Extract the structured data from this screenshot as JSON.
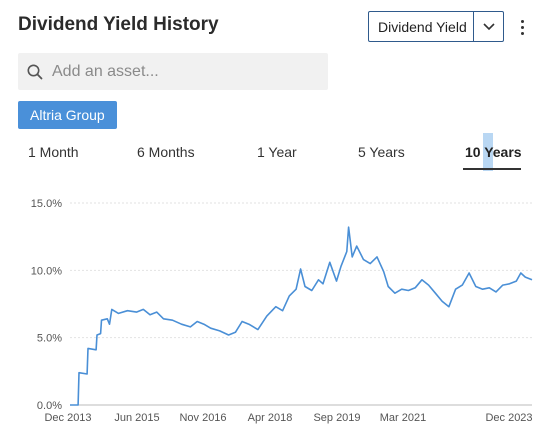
{
  "header": {
    "title": "Dividend Yield History"
  },
  "metric_select": {
    "selected": "Dividend Yield"
  },
  "search": {
    "placeholder": "Add an asset..."
  },
  "asset_chip": {
    "label": "Altria Group"
  },
  "tabs": [
    {
      "label": "1 Month"
    },
    {
      "label": "6 Months"
    },
    {
      "label": "1 Year"
    },
    {
      "label": "5 Years"
    },
    {
      "label": "10 Years",
      "active": true
    }
  ],
  "icons": {
    "search": "search-icon",
    "dropdown": "chevron-down-icon",
    "menu": "more-vertical-icon"
  },
  "colors": {
    "line": "#4a8fd6",
    "chip": "#4a90d9",
    "select_border": "#2f5a8c"
  },
  "chart_data": {
    "type": "line",
    "title": "",
    "xlabel": "",
    "ylabel": "",
    "ylim": [
      0,
      15
    ],
    "yticks": [
      "0.0%",
      "5.0%",
      "10.0%",
      "15.0%"
    ],
    "ytick_values": [
      0,
      5,
      10,
      15
    ],
    "xticks": [
      "Dec 2013",
      "Jun 2015",
      "Nov 2016",
      "Apr 2018",
      "Sep 2019",
      "Mar 2021",
      "Dec 2023"
    ],
    "xlim": [
      2013.92,
      2024.2
    ],
    "grid": "horizontal dashed",
    "series": [
      {
        "name": "",
        "points": [
          [
            2013.92,
            0.0
          ],
          [
            2014.1,
            0.0
          ],
          [
            2014.12,
            2.4
          ],
          [
            2014.3,
            2.3
          ],
          [
            2014.32,
            4.2
          ],
          [
            2014.5,
            4.1
          ],
          [
            2014.52,
            5.2
          ],
          [
            2014.6,
            5.3
          ],
          [
            2014.62,
            6.3
          ],
          [
            2014.75,
            6.4
          ],
          [
            2014.8,
            6.0
          ],
          [
            2014.85,
            7.1
          ],
          [
            2015.0,
            6.8
          ],
          [
            2015.2,
            7.0
          ],
          [
            2015.4,
            6.9
          ],
          [
            2015.55,
            7.1
          ],
          [
            2015.7,
            6.7
          ],
          [
            2015.85,
            6.9
          ],
          [
            2016.0,
            6.4
          ],
          [
            2016.2,
            6.3
          ],
          [
            2016.4,
            6.0
          ],
          [
            2016.6,
            5.8
          ],
          [
            2016.75,
            6.2
          ],
          [
            2016.9,
            6.0
          ],
          [
            2017.05,
            5.7
          ],
          [
            2017.25,
            5.5
          ],
          [
            2017.45,
            5.2
          ],
          [
            2017.6,
            5.4
          ],
          [
            2017.75,
            6.2
          ],
          [
            2017.9,
            6.0
          ],
          [
            2018.1,
            5.6
          ],
          [
            2018.3,
            6.6
          ],
          [
            2018.5,
            7.3
          ],
          [
            2018.65,
            7.0
          ],
          [
            2018.8,
            8.1
          ],
          [
            2018.95,
            8.6
          ],
          [
            2019.05,
            10.1
          ],
          [
            2019.15,
            8.8
          ],
          [
            2019.3,
            8.5
          ],
          [
            2019.45,
            9.3
          ],
          [
            2019.55,
            9.0
          ],
          [
            2019.7,
            10.6
          ],
          [
            2019.85,
            9.2
          ],
          [
            2019.95,
            10.3
          ],
          [
            2020.08,
            11.4
          ],
          [
            2020.12,
            13.2
          ],
          [
            2020.2,
            11.0
          ],
          [
            2020.3,
            11.8
          ],
          [
            2020.45,
            10.8
          ],
          [
            2020.6,
            10.5
          ],
          [
            2020.75,
            11.0
          ],
          [
            2020.9,
            9.9
          ],
          [
            2021.0,
            8.8
          ],
          [
            2021.15,
            8.3
          ],
          [
            2021.3,
            8.6
          ],
          [
            2021.45,
            8.5
          ],
          [
            2021.6,
            8.7
          ],
          [
            2021.75,
            9.3
          ],
          [
            2021.9,
            8.9
          ],
          [
            2022.05,
            8.3
          ],
          [
            2022.2,
            7.7
          ],
          [
            2022.35,
            7.3
          ],
          [
            2022.5,
            8.6
          ],
          [
            2022.65,
            8.9
          ],
          [
            2022.8,
            9.8
          ],
          [
            2022.95,
            8.8
          ],
          [
            2023.1,
            8.6
          ],
          [
            2023.25,
            8.7
          ],
          [
            2023.4,
            8.4
          ],
          [
            2023.55,
            8.9
          ],
          [
            2023.7,
            9.0
          ],
          [
            2023.85,
            9.2
          ],
          [
            2023.95,
            9.8
          ],
          [
            2024.05,
            9.5
          ],
          [
            2024.2,
            9.3
          ]
        ]
      }
    ]
  }
}
